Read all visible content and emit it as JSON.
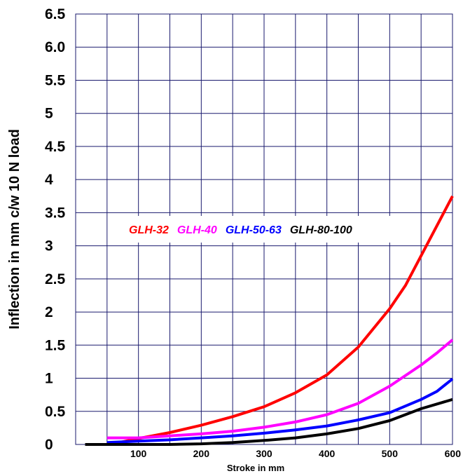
{
  "chart_data": {
    "type": "line",
    "xlabel": "Stroke in mm",
    "ylabel": "Inflection in mm c/w 10 N load",
    "xlim": [
      0,
      600
    ],
    "ylim": [
      0,
      6.5
    ],
    "x_ticks": [
      {
        "value": 100,
        "label": "100"
      },
      {
        "value": 200,
        "label": "200"
      },
      {
        "value": 300,
        "label": "300"
      },
      {
        "value": 400,
        "label": "400"
      },
      {
        "value": 500,
        "label": "500"
      },
      {
        "value": 600,
        "label": "600"
      }
    ],
    "y_ticks": [
      {
        "value": 0,
        "label": "0"
      },
      {
        "value": 0.5,
        "label": "0.5"
      },
      {
        "value": 1,
        "label": "1"
      },
      {
        "value": 1.5,
        "label": "1.5"
      },
      {
        "value": 2,
        "label": "2"
      },
      {
        "value": 2.5,
        "label": "2.5"
      },
      {
        "value": 3,
        "label": "3"
      },
      {
        "value": 3.5,
        "label": "3.5"
      },
      {
        "value": 4,
        "label": "4"
      },
      {
        "value": 4.5,
        "label": "4.5"
      },
      {
        "value": 5,
        "label": "5"
      },
      {
        "value": 5.5,
        "label": "5.5"
      },
      {
        "value": 6,
        "label": "6.0"
      },
      {
        "value": 6.5,
        "label": "6.5"
      }
    ],
    "grid_x": [
      50,
      100,
      150,
      200,
      250,
      300,
      350,
      400,
      450,
      500,
      550
    ],
    "grid_y": [
      0.5,
      1,
      1.5,
      2,
      2.5,
      3,
      3.5,
      4,
      4.5,
      5,
      5.5,
      6
    ],
    "grid": true,
    "legend_position": "center",
    "series": [
      {
        "name": "GLH-32",
        "color": "#ff0000",
        "points": [
          [
            55,
            0
          ],
          [
            100,
            0.09
          ],
          [
            150,
            0.18
          ],
          [
            200,
            0.29
          ],
          [
            250,
            0.42
          ],
          [
            300,
            0.57
          ],
          [
            350,
            0.78
          ],
          [
            400,
            1.05
          ],
          [
            450,
            1.47
          ],
          [
            500,
            2.05
          ],
          [
            525,
            2.4
          ],
          [
            550,
            2.85
          ],
          [
            575,
            3.3
          ],
          [
            600,
            3.75
          ]
        ]
      },
      {
        "name": "GLH-40",
        "color": "#ff00ff",
        "points": [
          [
            50,
            0.1
          ],
          [
            100,
            0.1
          ],
          [
            150,
            0.13
          ],
          [
            200,
            0.16
          ],
          [
            250,
            0.2
          ],
          [
            300,
            0.26
          ],
          [
            350,
            0.34
          ],
          [
            400,
            0.45
          ],
          [
            450,
            0.62
          ],
          [
            500,
            0.88
          ],
          [
            550,
            1.2
          ],
          [
            575,
            1.38
          ],
          [
            600,
            1.58
          ]
        ]
      },
      {
        "name": "GLH-50-63",
        "color": "#0000ff",
        "points": [
          [
            50,
            0.03
          ],
          [
            100,
            0.05
          ],
          [
            150,
            0.07
          ],
          [
            200,
            0.1
          ],
          [
            250,
            0.13
          ],
          [
            300,
            0.17
          ],
          [
            350,
            0.22
          ],
          [
            400,
            0.28
          ],
          [
            450,
            0.37
          ],
          [
            500,
            0.48
          ],
          [
            550,
            0.68
          ],
          [
            575,
            0.8
          ],
          [
            600,
            0.99
          ]
        ]
      },
      {
        "name": "GLH-80-100",
        "color": "#000000",
        "points": [
          [
            15,
            0
          ],
          [
            100,
            0
          ],
          [
            150,
            0
          ],
          [
            200,
            0.01
          ],
          [
            250,
            0.03
          ],
          [
            300,
            0.06
          ],
          [
            350,
            0.1
          ],
          [
            400,
            0.16
          ],
          [
            450,
            0.24
          ],
          [
            500,
            0.36
          ],
          [
            550,
            0.54
          ],
          [
            600,
            0.68
          ]
        ]
      }
    ]
  }
}
